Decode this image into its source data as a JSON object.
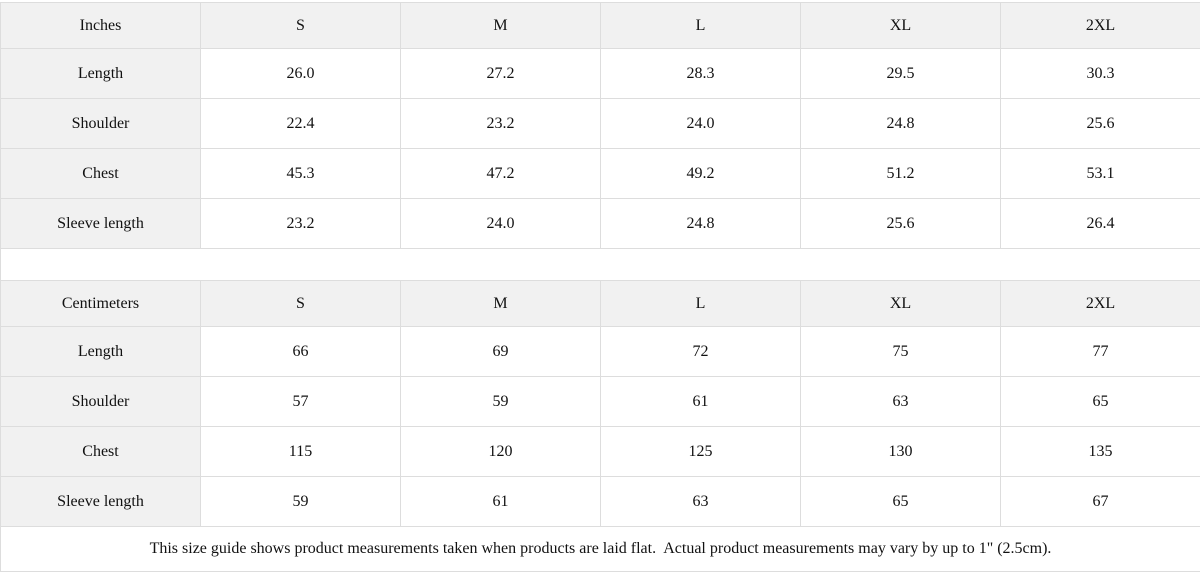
{
  "tables": [
    {
      "unit_label": "Inches",
      "sizes": [
        "S",
        "M",
        "L",
        "XL",
        "2XL"
      ],
      "rows": [
        {
          "label": "Length",
          "values": [
            "26.0",
            "27.2",
            "28.3",
            "29.5",
            "30.3"
          ]
        },
        {
          "label": "Shoulder",
          "values": [
            "22.4",
            "23.2",
            "24.0",
            "24.8",
            "25.6"
          ]
        },
        {
          "label": "Chest",
          "values": [
            "45.3",
            "47.2",
            "49.2",
            "51.2",
            "53.1"
          ]
        },
        {
          "label": "Sleeve length",
          "values": [
            "23.2",
            "24.0",
            "24.8",
            "25.6",
            "26.4"
          ]
        }
      ]
    },
    {
      "unit_label": "Centimeters",
      "sizes": [
        "S",
        "M",
        "L",
        "XL",
        "2XL"
      ],
      "rows": [
        {
          "label": "Length",
          "values": [
            "66",
            "69",
            "72",
            "75",
            "77"
          ]
        },
        {
          "label": "Shoulder",
          "values": [
            "57",
            "59",
            "61",
            "63",
            "65"
          ]
        },
        {
          "label": "Chest",
          "values": [
            "115",
            "120",
            "125",
            "130",
            "135"
          ]
        },
        {
          "label": "Sleeve length",
          "values": [
            "59",
            "61",
            "63",
            "65",
            "67"
          ]
        }
      ]
    }
  ],
  "footer_note": "This size guide shows product measurements taken when products are laid flat.  Actual product measurements may vary by up to 1\" (2.5cm).",
  "colors": {
    "header_bg": "#f1f1f1",
    "cell_bg": "#ffffff",
    "border": "#dddddd",
    "text": "#111111"
  }
}
